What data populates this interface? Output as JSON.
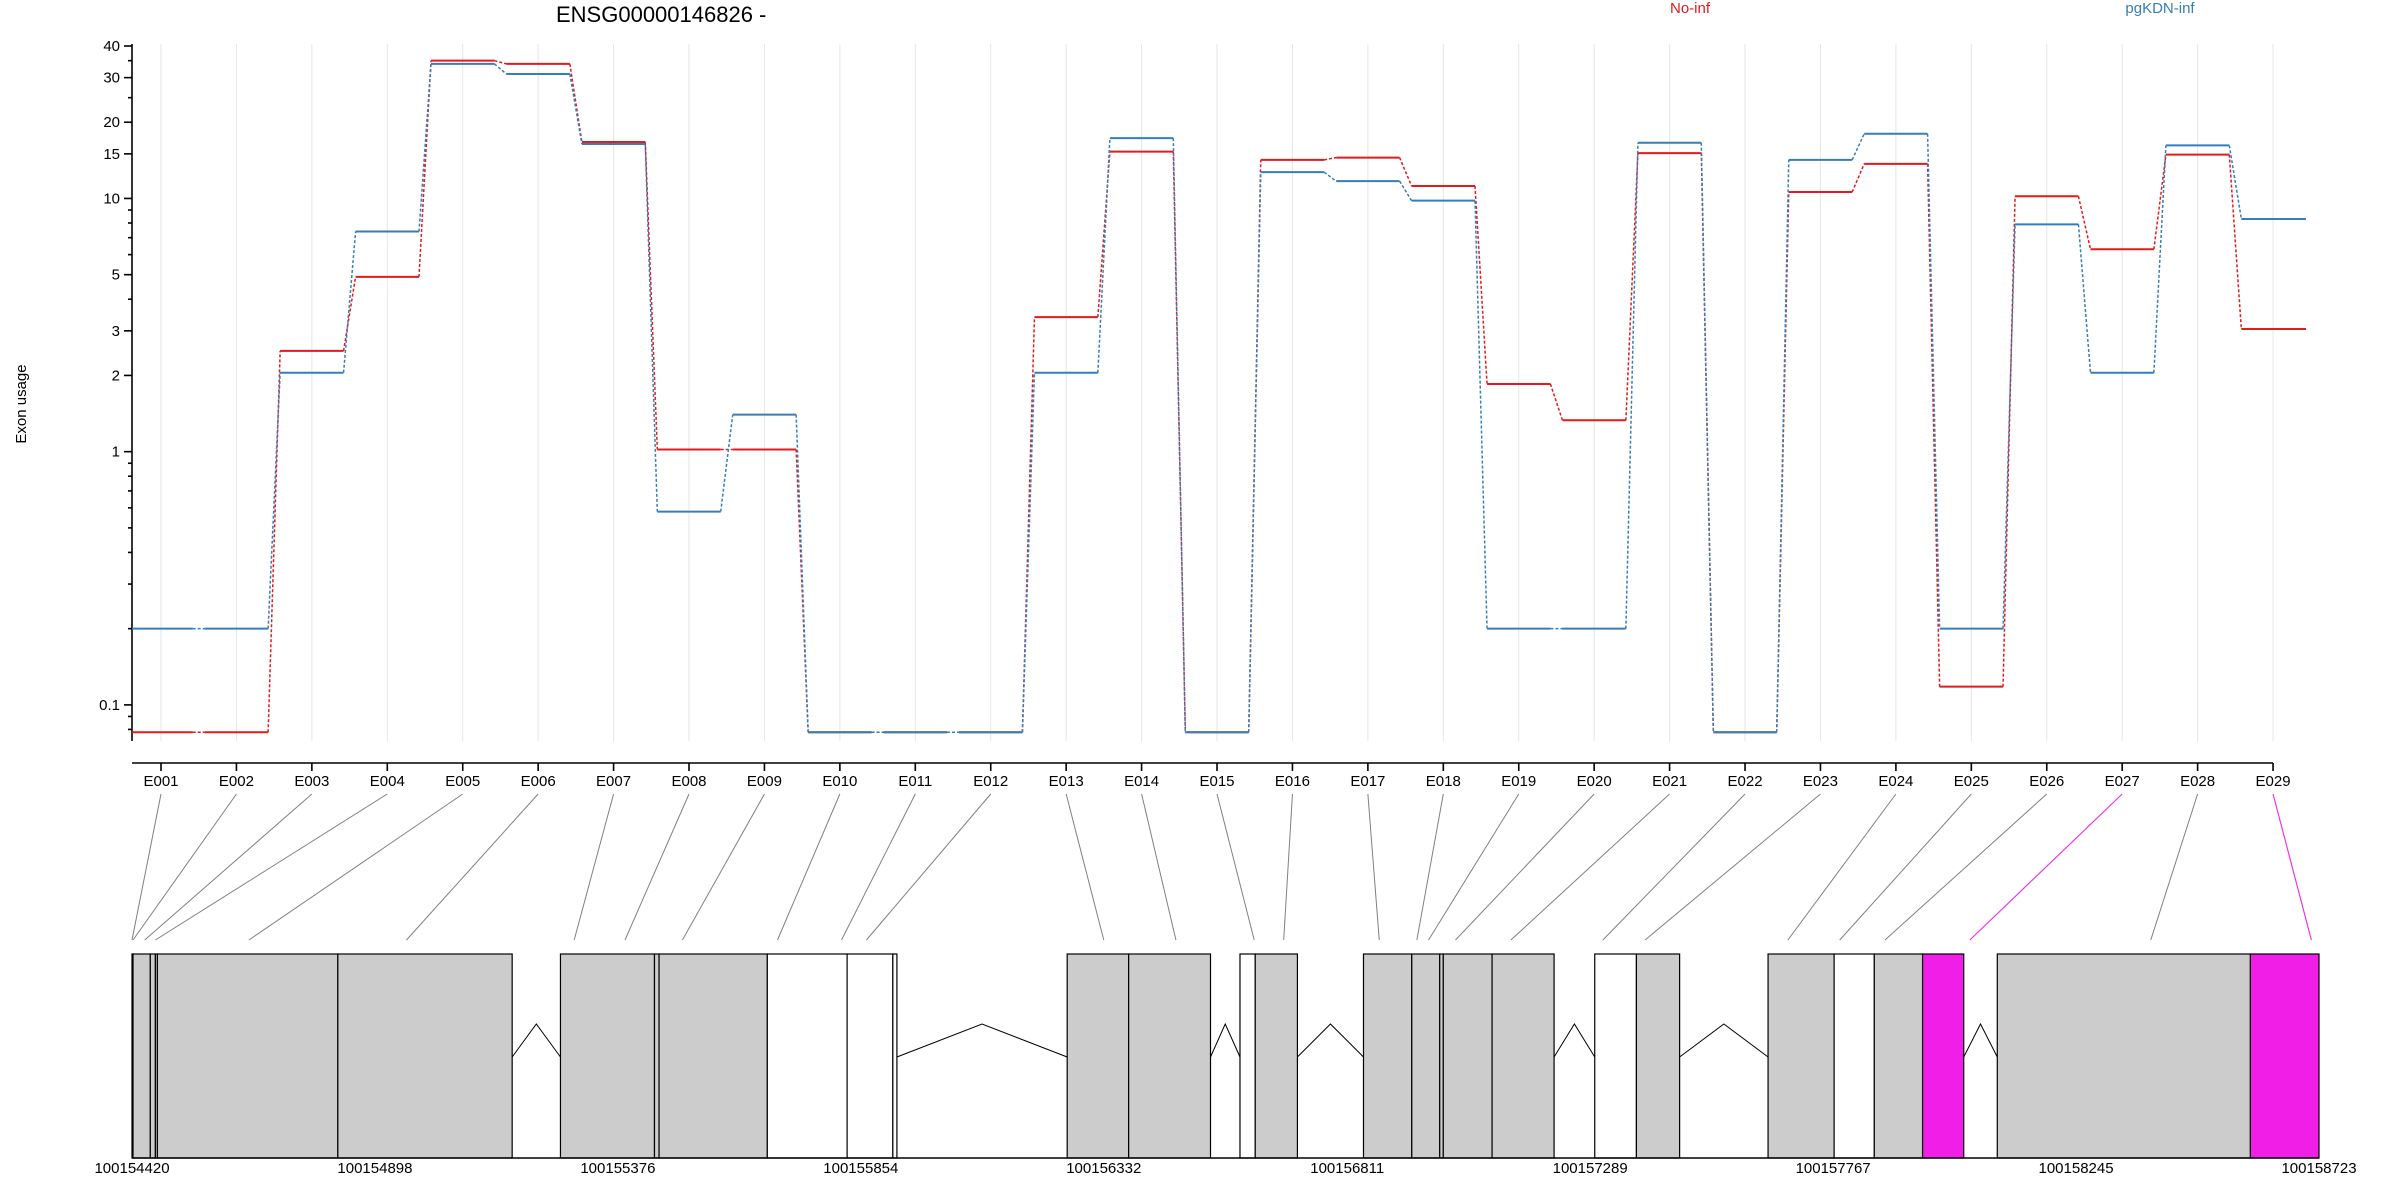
{
  "chart_data": {
    "type": "line",
    "title": "ENSG00000146826 -",
    "ylabel": "Exon usage",
    "xlabel": "",
    "y_scale": "log",
    "ylim": [
      0.072,
      40
    ],
    "y_ticks": [
      {
        "value": 0.1,
        "label": "0.1"
      },
      {
        "value": 1,
        "label": "1"
      },
      {
        "value": 2,
        "label": "2"
      },
      {
        "value": 3,
        "label": "3"
      },
      {
        "value": 5,
        "label": "5"
      },
      {
        "value": 10,
        "label": "10"
      },
      {
        "value": 15,
        "label": "15"
      },
      {
        "value": 20,
        "label": "20"
      },
      {
        "value": 30,
        "label": "30"
      },
      {
        "value": 40,
        "label": "40"
      }
    ],
    "categories": [
      "E001",
      "E002",
      "E003",
      "E004",
      "E005",
      "E006",
      "E007",
      "E008",
      "E009",
      "E010",
      "E011",
      "E012",
      "E013",
      "E014",
      "E015",
      "E016",
      "E017",
      "E018",
      "E019",
      "E020",
      "E021",
      "E022",
      "E023",
      "E024",
      "E025",
      "E026",
      "E027",
      "E028",
      "E029"
    ],
    "series": [
      {
        "name": "No-inf",
        "color": "#e41a1c",
        "values": [
          0.078,
          0.078,
          2.5,
          4.9,
          35,
          34,
          16.7,
          1.02,
          1.02,
          0.078,
          0.078,
          0.078,
          3.4,
          15.3,
          0.078,
          14.2,
          14.5,
          11.2,
          1.85,
          1.33,
          15.1,
          0.078,
          10.6,
          13.7,
          0.118,
          10.2,
          6.3,
          14.9,
          3.05
        ]
      },
      {
        "name": "pgKDN-inf",
        "color": "#377eb8",
        "values": [
          0.2,
          0.2,
          2.05,
          7.4,
          34,
          31,
          16.4,
          0.58,
          1.4,
          0.078,
          0.078,
          0.078,
          2.05,
          17.3,
          0.078,
          12.7,
          11.7,
          9.8,
          0.2,
          0.2,
          16.6,
          0.078,
          14.2,
          18.0,
          0.2,
          7.9,
          2.05,
          16.2,
          8.3
        ]
      }
    ],
    "legend": {
      "placement": "top",
      "items": [
        {
          "label": "No-inf",
          "color": "#e41a1c"
        },
        {
          "label": "pgKDN-inf",
          "color": "#377eb8"
        }
      ]
    },
    "grid": true,
    "gene_model": {
      "coordinate_ticks": [
        "100154420",
        "100154898",
        "100155376",
        "100155854",
        "100156332",
        "100156811",
        "100157289",
        "100157767",
        "100158245",
        "100158723"
      ],
      "coord_range": [
        100154420,
        100158723
      ],
      "highlight_color": "#f01ee6",
      "exon_fill": "#cccccc",
      "exons": [
        {
          "id": "E001",
          "start": 100154420,
          "end": 100154422,
          "fill": "gray"
        },
        {
          "id": "E002",
          "start": 100154422,
          "end": 100154456,
          "fill": "gray"
        },
        {
          "id": "E003",
          "start": 100154456,
          "end": 100154466,
          "fill": "gray"
        },
        {
          "id": "E004",
          "start": 100154466,
          "end": 100154470,
          "fill": "gray"
        },
        {
          "id": "E005",
          "start": 100154470,
          "end": 100154825,
          "fill": "gray"
        },
        {
          "id": "E006",
          "start": 100154825,
          "end": 100155168,
          "fill": "gray"
        },
        {
          "id": "E007",
          "start": 100155263,
          "end": 100155448,
          "fill": "gray"
        },
        {
          "id": "E008",
          "start": 100155448,
          "end": 100155457,
          "fill": "gray"
        },
        {
          "id": "E009",
          "start": 100155457,
          "end": 100155670,
          "fill": "gray"
        },
        {
          "id": "E010",
          "start": 100155670,
          "end": 100155827,
          "fill": "white"
        },
        {
          "id": "E011",
          "start": 100155827,
          "end": 100155917,
          "fill": "white"
        },
        {
          "id": "E012",
          "start": 100155917,
          "end": 100155925,
          "fill": "white"
        },
        {
          "id": "E013",
          "start": 100156260,
          "end": 100156381,
          "fill": "gray"
        },
        {
          "id": "E014",
          "start": 100156381,
          "end": 100156542,
          "fill": "gray"
        },
        {
          "id": "E015",
          "start": 100156600,
          "end": 100156630,
          "fill": "white"
        },
        {
          "id": "E016",
          "start": 100156630,
          "end": 100156713,
          "fill": "gray"
        },
        {
          "id": "E017",
          "start": 100156843,
          "end": 100156938,
          "fill": "gray"
        },
        {
          "id": "E018",
          "start": 100156938,
          "end": 100156993,
          "fill": "gray"
        },
        {
          "id": "E019",
          "start": 100156993,
          "end": 100157000,
          "fill": "gray"
        },
        {
          "id": "E020",
          "start": 100157000,
          "end": 100157096,
          "fill": "gray"
        },
        {
          "id": "E021",
          "start": 100157096,
          "end": 100157218,
          "fill": "gray"
        },
        {
          "id": "E022",
          "start": 100157298,
          "end": 100157380,
          "fill": "white"
        },
        {
          "id": "E023",
          "start": 100157380,
          "end": 100157465,
          "fill": "gray"
        },
        {
          "id": "E024",
          "start": 100157639,
          "end": 100157769,
          "fill": "gray"
        },
        {
          "id": "E025",
          "start": 100157769,
          "end": 100157848,
          "fill": "white"
        },
        {
          "id": "E026",
          "start": 100157848,
          "end": 100157943,
          "fill": "gray"
        },
        {
          "id": "E027",
          "start": 100157943,
          "end": 100158024,
          "fill": "highlight"
        },
        {
          "id": "E028",
          "start": 100158090,
          "end": 100158588,
          "fill": "gray"
        },
        {
          "id": "E029",
          "start": 100158588,
          "end": 100158723,
          "fill": "highlight"
        }
      ],
      "connector_targets": [
        100154420,
        100154422,
        100154445,
        100154466,
        100154650,
        100154960,
        100155290,
        100155390,
        100155503,
        100155690,
        100155816,
        100155865,
        100156332,
        100156474,
        100156628,
        100156686,
        100156874,
        100156948,
        100156971,
        100157024,
        100157133,
        100157314,
        100157397,
        100157678,
        100157780,
        100157869,
        100158036,
        100158392,
        100158708
      ],
      "connector_highlight": [
        false,
        false,
        false,
        false,
        false,
        false,
        false,
        false,
        false,
        false,
        false,
        false,
        false,
        false,
        false,
        false,
        false,
        false,
        false,
        false,
        false,
        false,
        false,
        false,
        false,
        false,
        true,
        false,
        true
      ]
    }
  }
}
